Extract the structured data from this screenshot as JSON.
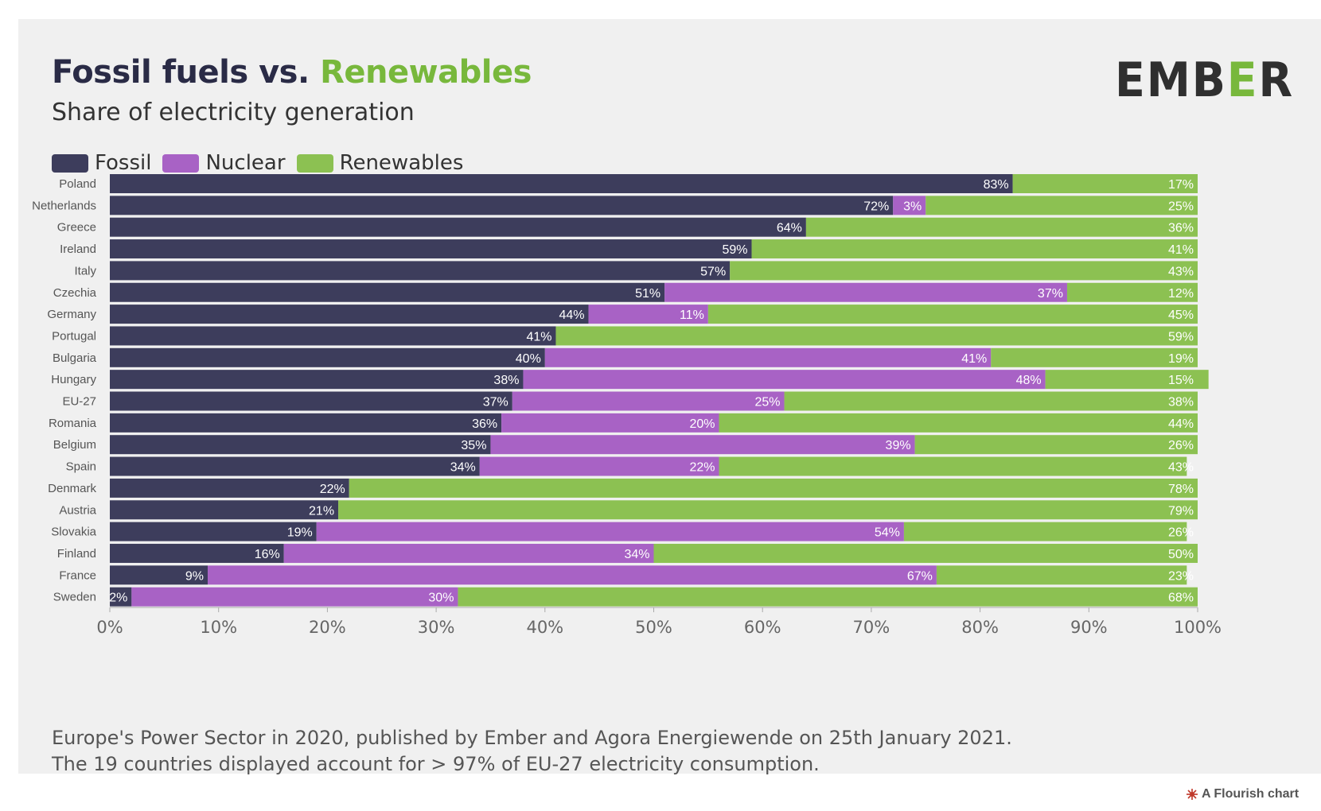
{
  "header": {
    "title_main": "Fossil fuels vs.",
    "title_accent": "Renewables",
    "subtitle": "Share of electricity generation",
    "logo_text": "EMBER",
    "logo_dark_color": "#2f2f2f",
    "logo_accent_color": "#78b83c"
  },
  "legend": [
    {
      "label": "Fossil",
      "color": "#3d3d5c"
    },
    {
      "label": "Nuclear",
      "color": "#a862c5"
    },
    {
      "label": "Renewables",
      "color": "#8cc152"
    }
  ],
  "footnote": {
    "line1": "Europe's Power Sector in 2020, published by Ember and Agora Energiewende on 25th January 2021.",
    "line2": "The 19 countries displayed account for > 97% of EU-27 electricity consumption."
  },
  "credit": {
    "label": "A Flourish chart",
    "icon": "flourish-icon"
  },
  "chart_data": {
    "type": "bar",
    "orientation": "horizontal",
    "stacked": true,
    "categories": [
      "Poland",
      "Netherlands",
      "Greece",
      "Ireland",
      "Italy",
      "Czechia",
      "Germany",
      "Portugal",
      "Bulgaria",
      "Hungary",
      "EU-27",
      "Romania",
      "Belgium",
      "Spain",
      "Denmark",
      "Austria",
      "Slovakia",
      "Finland",
      "France",
      "Sweden"
    ],
    "series": [
      {
        "name": "Fossil",
        "color": "#3d3d5c",
        "values": [
          83,
          72,
          64,
          59,
          57,
          51,
          44,
          41,
          40,
          38,
          37,
          36,
          35,
          34,
          22,
          21,
          19,
          16,
          9,
          2
        ]
      },
      {
        "name": "Nuclear",
        "color": "#a862c5",
        "values": [
          0,
          3,
          0,
          0,
          0,
          37,
          11,
          0,
          41,
          48,
          25,
          20,
          39,
          22,
          0,
          0,
          54,
          34,
          67,
          30
        ]
      },
      {
        "name": "Renewables",
        "color": "#8cc152",
        "values": [
          17,
          25,
          36,
          41,
          43,
          12,
          45,
          59,
          19,
          15,
          38,
          44,
          26,
          43,
          78,
          79,
          26,
          50,
          23,
          68
        ]
      }
    ],
    "xlim": [
      0,
      100
    ],
    "xticks": [
      "0%",
      "10%",
      "20%",
      "30%",
      "40%",
      "50%",
      "60%",
      "70%",
      "80%",
      "90%",
      "100%"
    ],
    "unit": "%"
  }
}
